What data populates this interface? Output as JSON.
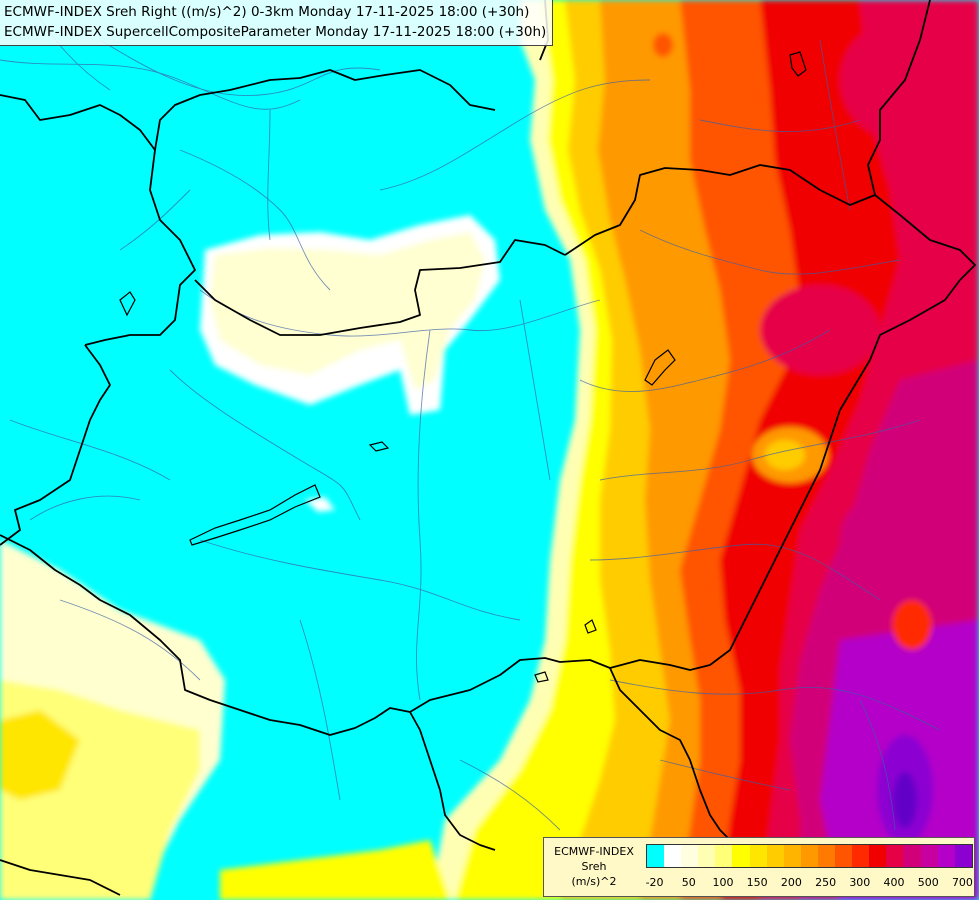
{
  "title_lines": [
    "ECMWF-INDEX Sreh Right ((m/s)^2) 0-3km Monday 17-11-2025 18:00 (+30h)",
    "ECMWF-INDEX SupercellCompositeParameter Monday 17-11-2025 18:00 (+30h)"
  ],
  "legend": {
    "title": [
      "ECMWF-INDEX",
      "Sreh",
      "(m/s)^2"
    ],
    "colors": [
      "#00ffff",
      "#ffffff",
      "#ffffe0",
      "#ffffb4",
      "#ffff78",
      "#ffff00",
      "#ffe600",
      "#ffcc00",
      "#ffb400",
      "#ff9900",
      "#ff7a00",
      "#ff5500",
      "#ff2a00",
      "#f00000",
      "#e60046",
      "#d20078",
      "#c800a0",
      "#b400c8",
      "#8c00d2",
      "#6400c8",
      "#3c00b4",
      "#1e0096",
      "#000082"
    ],
    "ticks": [
      {
        "label": "-20",
        "index": 0.5
      },
      {
        "label": "50",
        "index": 2.5
      },
      {
        "label": "100",
        "index": 4.5
      },
      {
        "label": "150",
        "index": 6.5
      },
      {
        "label": "200",
        "index": 8.5
      },
      {
        "label": "250",
        "index": 10.5
      },
      {
        "label": "300",
        "index": 12.5
      },
      {
        "label": "400",
        "index": 14.5
      },
      {
        "label": "500",
        "index": 16.5
      },
      {
        "label": "700",
        "index": 18.5
      }
    ]
  }
}
